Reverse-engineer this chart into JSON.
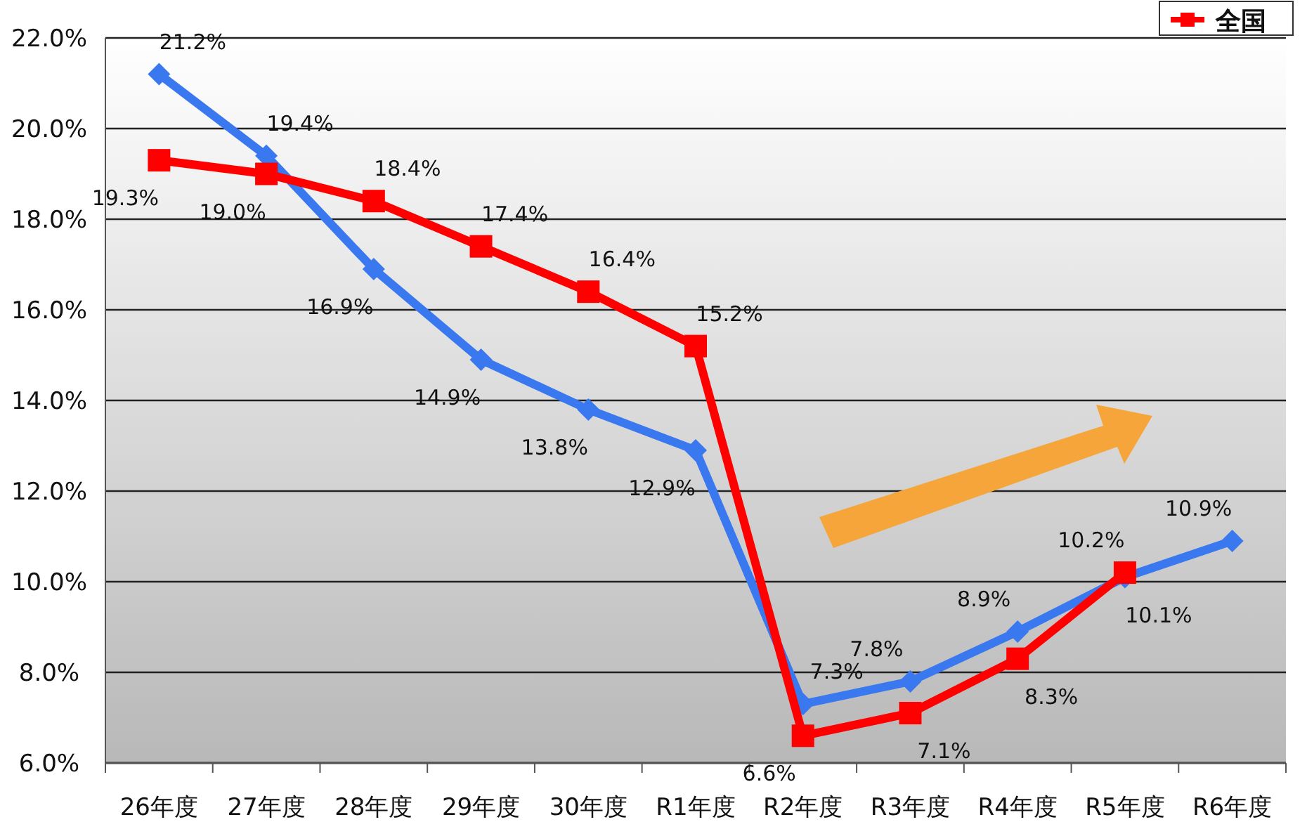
{
  "chart_data": {
    "type": "line",
    "categories": [
      "26年度",
      "27年度",
      "28年度",
      "29年度",
      "30年度",
      "R1年度",
      "R2年度",
      "R3年度",
      "R4年度",
      "R5年度",
      "R6年度"
    ],
    "series": [
      {
        "color": "#3a78f0",
        "marker": "diamond",
        "values": [
          21.2,
          19.4,
          16.9,
          14.9,
          13.8,
          12.9,
          7.3,
          7.8,
          8.9,
          10.1,
          10.9
        ],
        "value_labels": [
          "21.2%",
          "19.4%",
          "16.9%",
          "14.9%",
          "13.8%",
          "12.9%",
          "7.3%",
          "7.8%",
          "8.9%",
          "10.1%",
          "10.9%"
        ]
      },
      {
        "name": "全国",
        "color": "#ff0000",
        "marker": "square",
        "values": [
          19.3,
          19.0,
          18.4,
          17.4,
          16.4,
          15.2,
          6.6,
          7.1,
          8.3,
          10.2,
          null
        ],
        "value_labels": [
          "19.3%",
          "19.0%",
          "18.4%",
          "17.4%",
          "16.4%",
          "15.2%",
          "6.6%",
          "7.1%",
          "8.3%",
          "10.2%",
          null
        ]
      }
    ],
    "ylim": [
      6,
      22
    ],
    "yticks": [
      {
        "value": 6,
        "label": "6.0%"
      },
      {
        "value": 8,
        "label": "8.0%"
      },
      {
        "value": 10,
        "label": "10.0%"
      },
      {
        "value": 12,
        "label": "12.0%"
      },
      {
        "value": 14,
        "label": "14.0%"
      },
      {
        "value": 16,
        "label": "16.0%"
      },
      {
        "value": 18,
        "label": "18.0%"
      },
      {
        "value": 20,
        "label": "20.0%"
      },
      {
        "value": 22,
        "label": "22.0%"
      }
    ],
    "grid": "y",
    "legend": "top right",
    "line_style": "solid"
  }
}
